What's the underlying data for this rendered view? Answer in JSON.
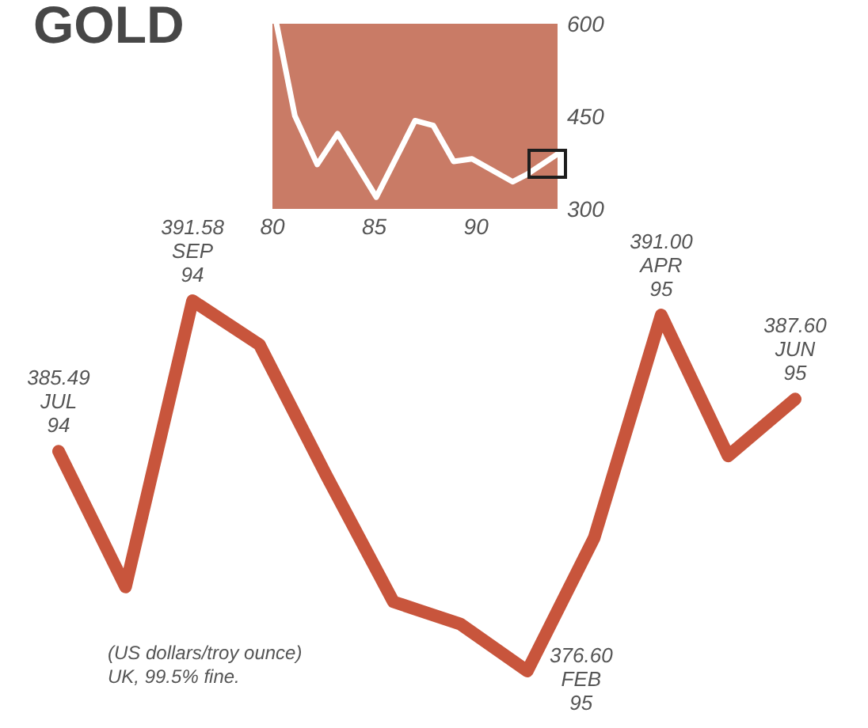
{
  "chart_data": [
    {
      "type": "line",
      "title": "GOLD",
      "categories": [
        null,
        null,
        null,
        null,
        null,
        null,
        null,
        null,
        null,
        null,
        null,
        null
      ],
      "values": [
        385.49,
        380.0,
        391.58,
        389.8,
        384.5,
        379.4,
        378.5,
        376.6,
        382.0,
        391.0,
        385.3,
        387.6
      ],
      "value_labels": [
        "385.49\nJUL\n94",
        null,
        "391.58\nSEP\n94",
        null,
        null,
        null,
        null,
        "376.60\nFEB\n95",
        null,
        "391.00\nAPR\n95",
        null,
        "387.60\nJUN\n95"
      ],
      "color": "#c8553c",
      "marker": "none",
      "annotations": [
        "(US dollars/troy ounce)\nUK, 99.5% fine."
      ]
    },
    {
      "type": "line",
      "x": [
        80.2,
        81.1,
        82.2,
        83.2,
        85.1,
        87.0,
        87.9,
        88.9,
        89.8,
        91.8,
        92.5,
        94.0
      ],
      "values": [
        600,
        451,
        372,
        422,
        319,
        443,
        435,
        377,
        381,
        344,
        356,
        389
      ],
      "color": "#ffffff",
      "marker": "none",
      "xlim": [
        80,
        94
      ],
      "xticks": [
        80,
        85,
        90
      ],
      "ylim": [
        300,
        600
      ],
      "yticks": [
        300,
        450,
        600
      ]
    }
  ]
}
